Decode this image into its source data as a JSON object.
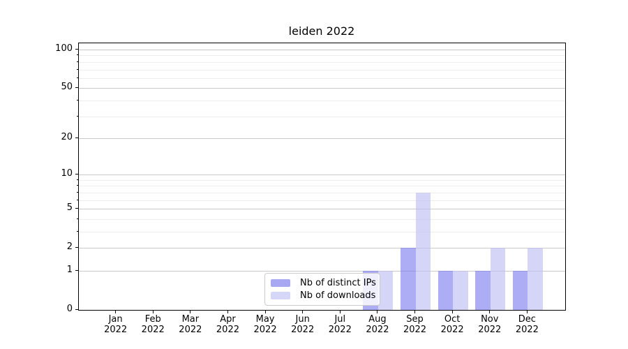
{
  "figure": {
    "background": "#ffffff",
    "spine_color": "#000000",
    "text_color": "#000000"
  },
  "chart_data": {
    "type": "bar",
    "title": "leiden 2022",
    "xlabel": "",
    "ylabel": "",
    "categories": [
      {
        "month": "Jan",
        "year": "2022"
      },
      {
        "month": "Feb",
        "year": "2022"
      },
      {
        "month": "Mar",
        "year": "2022"
      },
      {
        "month": "Apr",
        "year": "2022"
      },
      {
        "month": "May",
        "year": "2022"
      },
      {
        "month": "Jun",
        "year": "2022"
      },
      {
        "month": "Jul",
        "year": "2022"
      },
      {
        "month": "Aug",
        "year": "2022"
      },
      {
        "month": "Sep",
        "year": "2022"
      },
      {
        "month": "Oct",
        "year": "2022"
      },
      {
        "month": "Nov",
        "year": "2022"
      },
      {
        "month": "Dec",
        "year": "2022"
      }
    ],
    "series": [
      {
        "name": "Nb of distinct IPs",
        "values": [
          0,
          0,
          0,
          0,
          0,
          0,
          0,
          1,
          2,
          1,
          1,
          1
        ],
        "bar_fill": "rgba(122,122,240,0.62)",
        "legend_swatch": "#a8a8f2"
      },
      {
        "name": "Nb of downloads",
        "values": [
          0,
          0,
          0,
          0,
          0,
          0,
          0,
          1,
          7,
          1,
          2,
          2
        ],
        "bar_fill": "rgba(190,190,243,0.65)",
        "legend_swatch": "#d6d6f8"
      }
    ],
    "y_scale": "log1p",
    "ylim": [
      0,
      112
    ],
    "y_major_ticks": [
      0,
      1,
      2,
      5,
      10,
      20,
      50,
      100
    ],
    "y_minor_ticks": [
      3,
      4,
      6,
      7,
      8,
      9,
      30,
      40,
      60,
      70,
      80,
      90
    ],
    "grid": {
      "major_color": "#c9c9c9",
      "minor_color": "#ededed"
    },
    "legend": {
      "position": "lower center",
      "frame_alpha": 0.8
    }
  }
}
